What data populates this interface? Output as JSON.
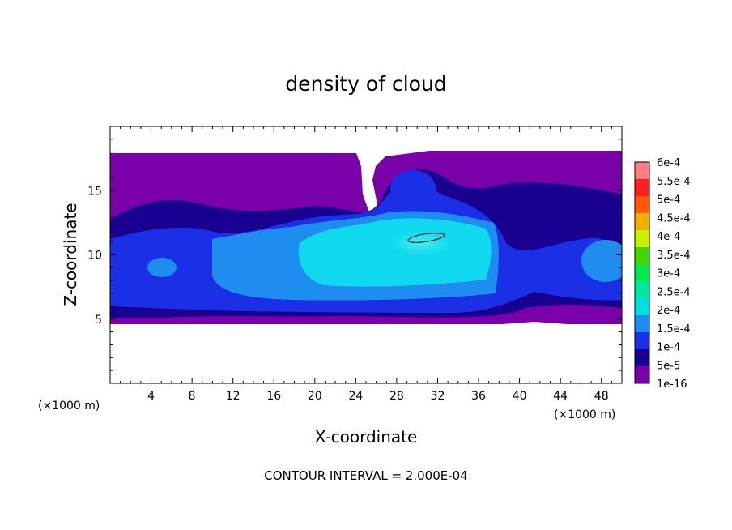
{
  "chart_data": {
    "type": "heatmap",
    "title": "density of cloud",
    "xlabel": "X-coordinate",
    "ylabel": "Z-coordinate",
    "x_unit": "(×1000 m)",
    "xlim": [
      0,
      50
    ],
    "ylim": [
      0,
      20
    ],
    "x_ticks": [
      4,
      8,
      12,
      16,
      20,
      24,
      28,
      32,
      36,
      40,
      44,
      48
    ],
    "y_ticks": [
      5,
      10,
      15
    ],
    "footer": "CONTOUR INTERVAL = 2.000E-04",
    "colorbar": {
      "labels": [
        "1e-16",
        "5e-5",
        "1e-4",
        "1.5e-4",
        "2e-4",
        "2.5e-4",
        "3e-4",
        "3.5e-4",
        "4e-4",
        "4.5e-4",
        "5e-4",
        "5.5e-4",
        "6e-4"
      ],
      "colors": [
        "#7a00aa",
        "#1a0090",
        "#1a2fe6",
        "#1f8cf0",
        "#00e0e0",
        "#00e8a0",
        "#00e84a",
        "#40d800",
        "#c8f000",
        "#f0b000",
        "#ff5a00",
        "#ff2020",
        "#ff8080"
      ]
    }
  }
}
